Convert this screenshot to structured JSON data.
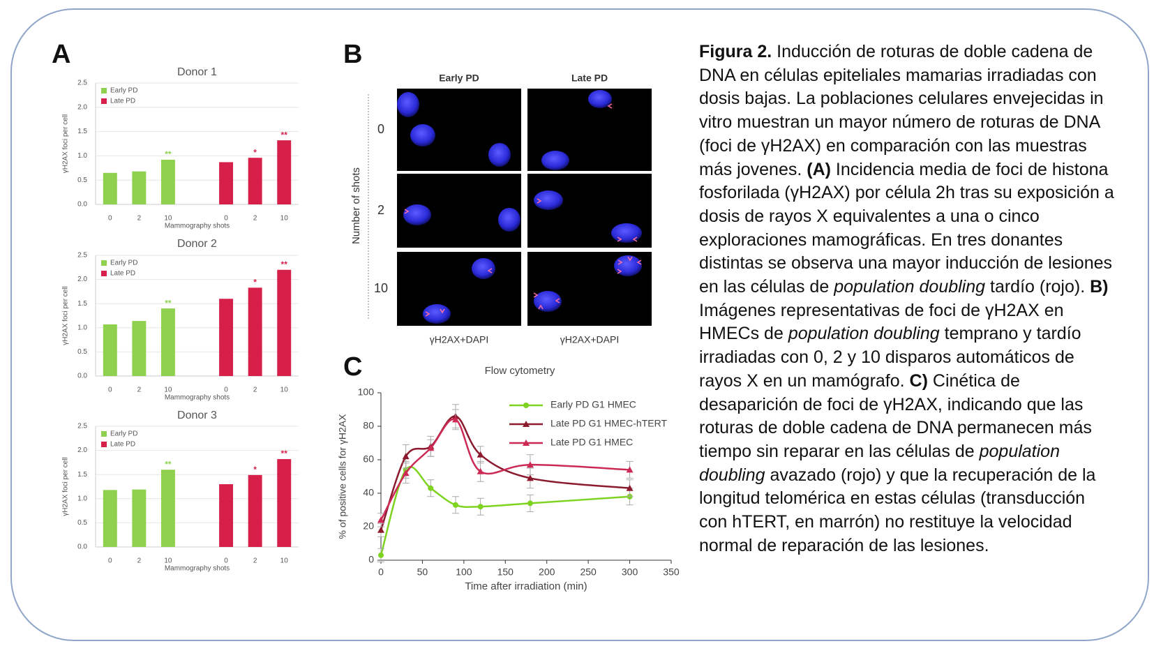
{
  "chart_data": [
    {
      "type": "bar",
      "title": "Donor 1",
      "xlabel": "Mammography shots",
      "ylabel": "γH2AX foci per cell",
      "categories": [
        "0",
        "2",
        "10"
      ],
      "series": [
        {
          "name": "Early PD",
          "color": "#8fd14f",
          "values": [
            0.65,
            0.68,
            0.92
          ],
          "significance": [
            null,
            null,
            "**"
          ]
        },
        {
          "name": "Late PD",
          "color": "#d6204a",
          "values": [
            0.87,
            0.96,
            1.32
          ],
          "significance": [
            null,
            "*",
            "**"
          ]
        }
      ],
      "ylim": [
        0,
        2.5
      ],
      "yticks": [
        {
          "value": 0,
          "label": "0.0"
        },
        0.5,
        {
          "value": 1,
          "label": "1.0"
        },
        1.5,
        {
          "value": 2,
          "label": "2.0"
        },
        2.5
      ],
      "grid": true
    },
    {
      "type": "bar",
      "title": "Donor 2",
      "xlabel": "Mammography shots",
      "ylabel": "γH2AX foci per cell",
      "categories": [
        "0",
        "2",
        "10"
      ],
      "series": [
        {
          "name": "Early PD",
          "color": "#8fd14f",
          "values": [
            1.07,
            1.14,
            1.4
          ],
          "significance": [
            null,
            null,
            "**"
          ]
        },
        {
          "name": "Late PD",
          "color": "#d6204a",
          "values": [
            1.6,
            1.83,
            2.2
          ],
          "significance": [
            null,
            "*",
            "**"
          ]
        }
      ],
      "ylim": [
        0,
        2.5
      ],
      "yticks": [
        {
          "value": 0,
          "label": "0.0"
        },
        0.5,
        {
          "value": 1,
          "label": "1.0"
        },
        1.5,
        {
          "value": 2,
          "label": "2.0"
        },
        2.5
      ],
      "grid": true
    },
    {
      "type": "bar",
      "title": "Donor 3",
      "xlabel": "Mammography shots",
      "ylabel": "γH2AX foci per cell",
      "categories": [
        "0",
        "2",
        "10"
      ],
      "series": [
        {
          "name": "Early PD",
          "color": "#8fd14f",
          "values": [
            1.18,
            1.19,
            1.6
          ],
          "significance": [
            null,
            null,
            "**"
          ]
        },
        {
          "name": "Late PD",
          "color": "#d6204a",
          "values": [
            1.3,
            1.49,
            1.82
          ],
          "significance": [
            null,
            "*",
            "**"
          ]
        }
      ],
      "ylim": [
        0,
        2.5
      ],
      "yticks": [
        {
          "value": 0,
          "label": "0.0"
        },
        0.5,
        {
          "value": 1,
          "label": "1.0"
        },
        1.5,
        {
          "value": 2,
          "label": "2.0"
        },
        2.5
      ],
      "grid": true
    },
    {
      "type": "line",
      "title": "Flow cytometry",
      "xlabel": "Time after irradiation (min)",
      "ylabel": "% of positive cells for γH2AX",
      "x": [
        0,
        30,
        60,
        90,
        120,
        180,
        300
      ],
      "series": [
        {
          "name": "Early PD G1 HMEC",
          "color": "#7ed321",
          "marker": "circle",
          "values": [
            3,
            54,
            43,
            33,
            32,
            34,
            38
          ],
          "errors": [
            4,
            5,
            5,
            5,
            5,
            5,
            5
          ]
        },
        {
          "name": "Late PD G1 HMEC-hTERT",
          "color": "#8b1a2e",
          "marker": "triangle",
          "values": [
            18,
            62,
            68,
            86,
            63,
            49,
            43
          ],
          "errors": [
            4,
            7,
            6,
            7,
            5,
            6,
            5
          ]
        },
        {
          "name": "Late PD G1 HMEC",
          "color": "#cc2a55",
          "marker": "triangle",
          "values": [
            24,
            52,
            67,
            84,
            53,
            57,
            54
          ],
          "errors": [
            4,
            6,
            5,
            6,
            6,
            6,
            5
          ]
        }
      ],
      "xlim": [
        0,
        350
      ],
      "xticks": [
        0,
        50,
        100,
        150,
        200,
        250,
        300,
        350
      ],
      "ylim": [
        0,
        100
      ],
      "yticks": [
        0,
        20,
        40,
        60,
        80,
        100
      ]
    }
  ],
  "panel_labels": [
    "A",
    "B",
    "C"
  ],
  "micrographs": {
    "columns": [
      "Early PD",
      "Late PD"
    ],
    "rows": [
      "0",
      "2",
      "10"
    ],
    "row_axis": "Number of shots",
    "stain": [
      "γH2AX+DAPI",
      "γH2AX+DAPI"
    ]
  },
  "caption": [
    {
      "text": "Figura 2.",
      "style": "bold"
    },
    {
      "text": " Inducción de roturas de doble cadena de DNA en células epiteliales mamarias irradiadas con dosis bajas. La poblaciones celulares envejecidas in vitro muestran un mayor número de roturas de DNA (foci de γH2AX) en comparación con las muestras más jovenes. ",
      "style": "normal"
    },
    {
      "text": "(A)",
      "style": "bold"
    },
    {
      "text": " Incidencia media de foci de histona fosforilada (γH2AX) por célula 2h tras su exposición a dosis de rayos X equivalentes a una o cinco exploraciones mamográficas. En tres donantes distintas se observa una mayor inducción de lesiones en las células de ",
      "style": "normal"
    },
    {
      "text": "population doubling",
      "style": "italic"
    },
    {
      "text": " tardío (rojo). ",
      "style": "normal"
    },
    {
      "text": "B)",
      "style": "bold"
    },
    {
      "text": " Imágenes representativas de foci de γH2AX en HMECs de ",
      "style": "normal"
    },
    {
      "text": "population doubling",
      "style": "italic"
    },
    {
      "text": " temprano y tardío irradiadas con 0, 2 y 10 disparos automáticos de rayos X en un mamógrafo. ",
      "style": "normal"
    },
    {
      "text": "C)",
      "style": "bold"
    },
    {
      "text": " Cinética de desaparición de foci de γH2AX, indicando que las roturas de doble cadena de DNA permanecen más tiempo sin reparar en las células de ",
      "style": "normal"
    },
    {
      "text": "population doubling",
      "style": "italic"
    },
    {
      "text": " avazado (rojo) y que la recuperación de la longitud telomérica en estas células (transducción con hTERT, en marrón) no restituye la velocidad normal de reparación de las lesiones.",
      "style": "normal"
    }
  ]
}
